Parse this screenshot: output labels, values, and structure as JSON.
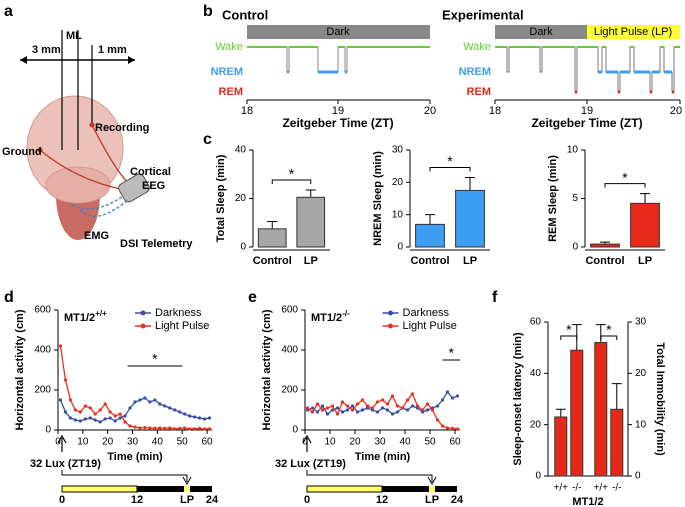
{
  "panel_labels": [
    "a",
    "b",
    "c",
    "d",
    "e",
    "f"
  ],
  "diagram": {
    "ml": "ML",
    "left": "3 mm",
    "right": "1 mm",
    "recording": "Recording",
    "ground": "Ground",
    "eeg": [
      "Cortical",
      "EEG"
    ],
    "emg": "EMG",
    "telemetry": "DSI Telemetry"
  },
  "hypnograms": {
    "panels": [
      {
        "title": "Control",
        "bars": [
          "Dark"
        ]
      },
      {
        "title": "Experimental",
        "bars": [
          "Dark",
          "Light Pulse (LP)"
        ]
      }
    ],
    "states": [
      "Wake",
      "NREM",
      "REM"
    ],
    "xticks": [
      "18",
      "19",
      "20"
    ],
    "xlabel": "Zeitgeber Time (ZT)"
  },
  "timeline": {
    "label": "32 Lux (ZT19)",
    "ticks": [
      "0",
      "12",
      "LP",
      "24"
    ]
  },
  "chart_data": [
    {
      "type": "bar",
      "ylabel": "Total Sleep (min)",
      "categories": [
        "Control",
        "LP"
      ],
      "values": [
        7.5,
        20.5
      ],
      "errors": [
        3,
        3
      ],
      "colors": [
        "#a6a6a6",
        "#a6a6a6"
      ],
      "ylim": [
        0,
        40
      ],
      "yticks": [
        0,
        20,
        40
      ],
      "annotation": "*"
    },
    {
      "type": "bar",
      "ylabel": "NREM Sleep (min)",
      "categories": [
        "Control",
        "LP"
      ],
      "values": [
        7,
        17.5
      ],
      "errors": [
        3,
        4
      ],
      "colors": [
        "#3d9df3",
        "#3d9df3"
      ],
      "ylim": [
        0,
        30
      ],
      "yticks": [
        0,
        10,
        20,
        30
      ],
      "annotation": "*"
    },
    {
      "type": "bar",
      "ylabel": "REM Sleep (min)",
      "categories": [
        "Control",
        "LP"
      ],
      "values": [
        0.3,
        4.5
      ],
      "errors": [
        0.2,
        1
      ],
      "colors": [
        "#e62a1a",
        "#e62a1a"
      ],
      "ylim": [
        0,
        10
      ],
      "yticks": [
        0,
        5,
        10
      ],
      "annotation": "*"
    },
    {
      "type": "line",
      "title": "MT1/2",
      "title_sup": "+/+",
      "ylabel": "Horizontal activity (cm)",
      "xlabel": "Time (min)",
      "x": [
        1,
        3,
        5,
        7,
        9,
        11,
        13,
        15,
        17,
        19,
        21,
        23,
        25,
        27,
        29,
        31,
        33,
        35,
        37,
        39,
        41,
        43,
        45,
        47,
        49,
        51,
        53,
        55,
        57,
        59,
        61
      ],
      "series": [
        {
          "name": "Darkness",
          "color": "#3a4fa3",
          "values": [
            150,
            90,
            60,
            50,
            45,
            55,
            60,
            50,
            40,
            55,
            60,
            45,
            60,
            70,
            110,
            140,
            150,
            160,
            140,
            150,
            130,
            120,
            110,
            100,
            90,
            80,
            70,
            65,
            60,
            55,
            60
          ]
        },
        {
          "name": "Light Pulse",
          "color": "#e8321f",
          "values": [
            420,
            250,
            150,
            100,
            90,
            120,
            110,
            80,
            100,
            130,
            90,
            70,
            80,
            40,
            20,
            15,
            10,
            12,
            10,
            8,
            10,
            8,
            10,
            6,
            8,
            10,
            5,
            6,
            8,
            5,
            6
          ]
        }
      ],
      "xlim": [
        0,
        62
      ],
      "ylim": [
        0,
        600
      ],
      "xticks": [
        0,
        10,
        20,
        30,
        40,
        50,
        60
      ],
      "yticks": [
        0,
        200,
        400,
        600
      ],
      "annotation": "*",
      "annotation_span": [
        28,
        50
      ]
    },
    {
      "type": "line",
      "title": "MT1/2",
      "title_sup": "-/-",
      "ylabel": "Horizontal activity (cm)",
      "xlabel": "Time (min)",
      "x": [
        1,
        3,
        5,
        7,
        9,
        11,
        13,
        15,
        17,
        19,
        21,
        23,
        25,
        27,
        29,
        31,
        33,
        35,
        37,
        39,
        41,
        43,
        45,
        47,
        49,
        51,
        53,
        55,
        57,
        59,
        61
      ],
      "series": [
        {
          "name": "Darkness",
          "color": "#3a4fa3",
          "values": [
            100,
            110,
            90,
            120,
            80,
            100,
            110,
            90,
            100,
            120,
            90,
            100,
            110,
            100,
            90,
            110,
            100,
            80,
            90,
            110,
            100,
            120,
            110,
            90,
            100,
            110,
            120,
            150,
            190,
            160,
            170
          ]
        },
        {
          "name": "Light Pulse",
          "color": "#e8321f",
          "values": [
            110,
            90,
            130,
            100,
            110,
            120,
            80,
            140,
            120,
            100,
            130,
            150,
            120,
            110,
            140,
            150,
            130,
            170,
            120,
            110,
            150,
            180,
            120,
            100,
            130,
            100,
            50,
            20,
            10,
            8,
            5
          ]
        }
      ],
      "xlim": [
        0,
        62
      ],
      "ylim": [
        0,
        600
      ],
      "xticks": [
        0,
        10,
        20,
        30,
        40,
        50,
        60
      ],
      "yticks": [
        0,
        200,
        400,
        600
      ],
      "annotation": "*",
      "annotation_span": [
        55,
        62
      ]
    },
    {
      "type": "bar",
      "ylabel": "Sleep-onset latency (min)",
      "y2label": "Total Immobility (min)",
      "categories": [
        "+/+",
        "-/-"
      ],
      "group_label": "MT1/2",
      "series": [
        {
          "color": "#e62a1a",
          "values": [
            23,
            49
          ],
          "errors": [
            3,
            10
          ]
        },
        {
          "color": "#e62a1a",
          "values": [
            26,
            13
          ],
          "errors": [
            3.5,
            5
          ],
          "axis": "y2"
        }
      ],
      "ylim": [
        0,
        60
      ],
      "yticks": [
        0,
        20,
        40,
        60
      ],
      "y2lim": [
        0,
        30
      ],
      "y2ticks": [
        0,
        10,
        20,
        30
      ],
      "annotation": "*"
    }
  ]
}
